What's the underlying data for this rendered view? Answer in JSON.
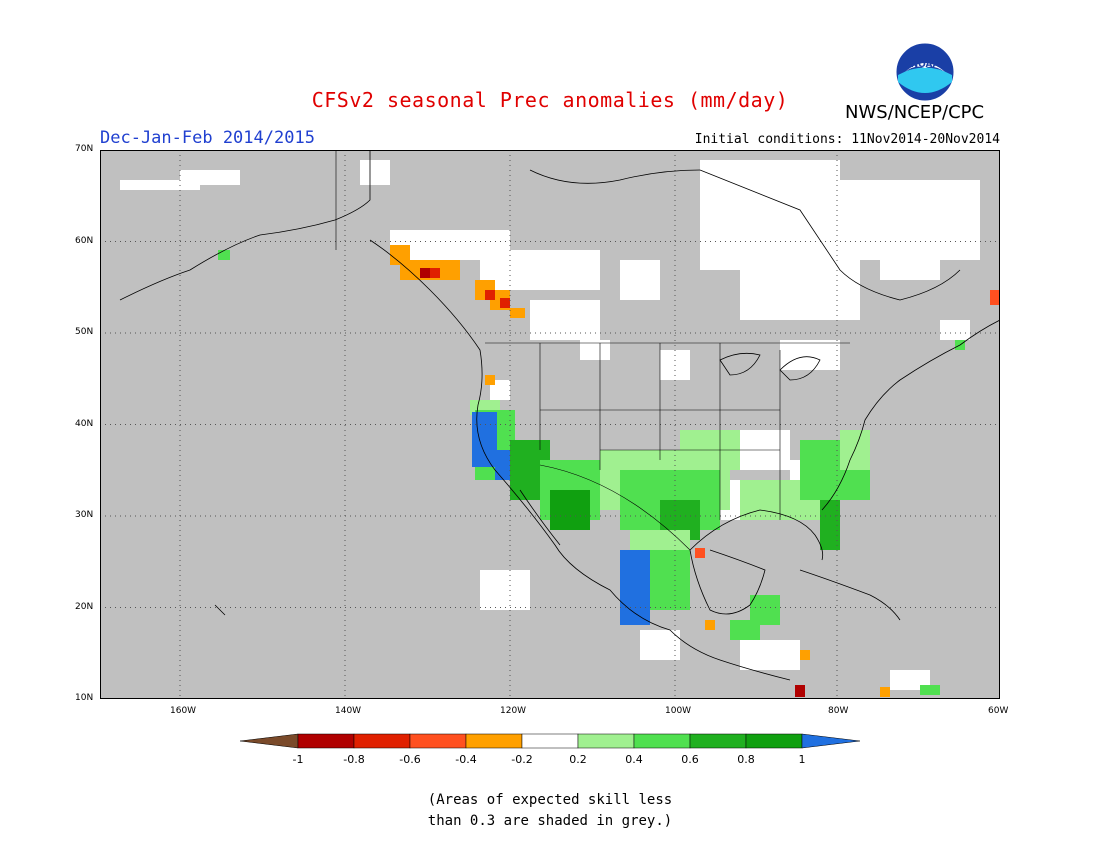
{
  "header": {
    "title": "CFSv2 seasonal Prec anomalies (mm/day)",
    "agency": "NWS/NCEP/CPC",
    "logo_text": "NOAA",
    "season": "Dec-Jan-Feb 2014/2015",
    "initial_conditions": "Initial conditions: 11Nov2014-20Nov2014"
  },
  "map": {
    "lat_labels": [
      "70N",
      "60N",
      "50N",
      "40N",
      "30N",
      "20N",
      "10N"
    ],
    "lon_labels": [
      "160W",
      "140W",
      "120W",
      "100W",
      "80W",
      "60W"
    ],
    "colors": {
      "skill_grey": "#c0c0c0",
      "land_white": "#ffffff",
      "coast": "#000000"
    }
  },
  "colorbar": {
    "ticks": [
      "-1",
      "-0.8",
      "-0.6",
      "-0.4",
      "-0.2",
      "0.2",
      "0.4",
      "0.6",
      "0.8",
      "1"
    ],
    "colors": [
      "#7a4a2a",
      "#b00000",
      "#e02000",
      "#ff5020",
      "#ffa000",
      "#ffffff",
      "#a0f090",
      "#50e050",
      "#20b020",
      "#10a010",
      "#2070e0"
    ]
  },
  "note": {
    "line1": "(Areas of expected skill less",
    "line2": "than 0.3 are shaded in grey.)"
  }
}
